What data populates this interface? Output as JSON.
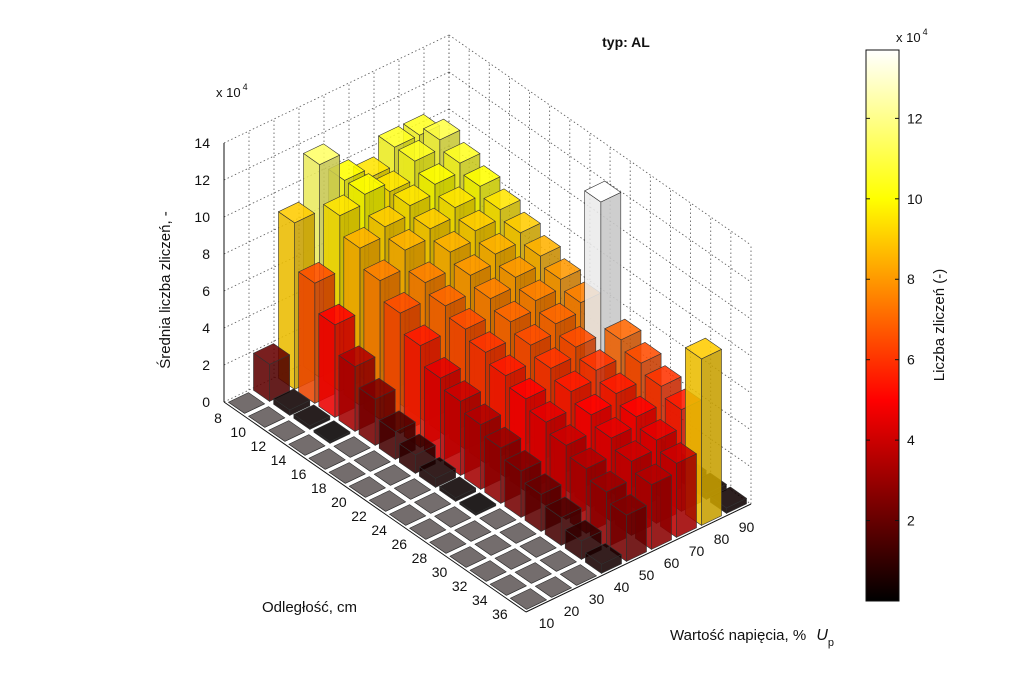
{
  "chart_data": {
    "type": "bar3d",
    "title": "typ: AL",
    "zlabel": "Średnia liczba zliczeń, -",
    "xlabel": "Odległość, cm",
    "ylabel_main": "Wartość napięcia, % ",
    "ylabel_var": "U",
    "ylabel_sub": "p",
    "z_multiplier": "x 10",
    "z_multiplier_exp": "4",
    "colorbar_label": "Liczba zliczeń (-)",
    "colorbar_multiplier": "x 10",
    "colorbar_multiplier_exp": "4",
    "zlim": [
      0,
      140000
    ],
    "z_ticks": [
      0,
      2,
      4,
      6,
      8,
      10,
      12,
      14
    ],
    "colorbar_ticks": [
      2,
      4,
      6,
      8,
      10,
      12
    ],
    "colorbar_range": [
      0,
      13.7
    ],
    "colormap": "hot",
    "distances": [
      8,
      10,
      12,
      14,
      16,
      18,
      20,
      22,
      24,
      26,
      28,
      30,
      32,
      34,
      36
    ],
    "voltages": [
      10,
      20,
      30,
      40,
      50,
      60,
      70,
      80,
      90
    ],
    "units": "x 10^4 counts",
    "values": [
      [
        0,
        2.0,
        9.0,
        11.5,
        10.0,
        9.5,
        10.5,
        10.5,
        0.5
      ],
      [
        0,
        0.3,
        6.5,
        9.5,
        10.0,
        9.5,
        10.5,
        11.0,
        0.5
      ],
      [
        0,
        0.2,
        5.0,
        8.5,
        9.0,
        9.5,
        10.0,
        10.5,
        0.5
      ],
      [
        0,
        0.1,
        3.5,
        7.5,
        8.5,
        9.0,
        9.5,
        10.0,
        0.5
      ],
      [
        0,
        0,
        2.5,
        6.5,
        7.5,
        8.5,
        9.0,
        9.5,
        0.5
      ],
      [
        0,
        0,
        1.5,
        5.5,
        7.0,
        8.0,
        8.5,
        9.0,
        0.5
      ],
      [
        0,
        0,
        1.0,
        4.5,
        6.5,
        7.5,
        8.0,
        8.5,
        0.5
      ],
      [
        0,
        0,
        0.5,
        4.0,
        6.0,
        7.0,
        7.5,
        8.0,
        0.5
      ],
      [
        0,
        0,
        0.2,
        3.5,
        5.5,
        6.5,
        7.0,
        7.5,
        0.5
      ],
      [
        0,
        0,
        0.1,
        3.0,
        5.0,
        6.0,
        6.5,
        13.7,
        0.3
      ],
      [
        0,
        0,
        0,
        2.5,
        4.5,
        5.5,
        6.0,
        7.0,
        0.3
      ],
      [
        0,
        0,
        0,
        2.0,
        4.0,
        5.0,
        5.5,
        6.5,
        0.3
      ],
      [
        0,
        0,
        0,
        1.5,
        3.5,
        4.5,
        5.0,
        6.0,
        0.3
      ],
      [
        0,
        0,
        0,
        1.0,
        3.0,
        4.0,
        4.5,
        5.5,
        0.3
      ],
      [
        0,
        0,
        0,
        0.5,
        2.5,
        3.5,
        4.0,
        9.0,
        0.3
      ]
    ]
  }
}
